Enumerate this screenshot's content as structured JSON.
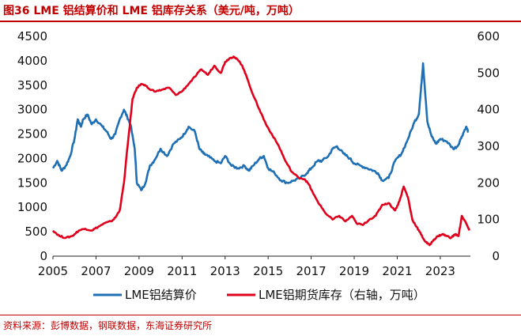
{
  "title": "图36  LME 铝结算价和 LME 铝库存关系（美元/吨，万吨）",
  "source": "资料来源：彭博数据，钢联数据，东海证券研究所",
  "colors": {
    "accent": "#c00000",
    "price": "#1f6fb5",
    "inventory": "#e0001b"
  },
  "chart_data": {
    "type": "line",
    "x_ticks": [
      "2005",
      "2007",
      "2009",
      "2011",
      "2013",
      "2015",
      "2017",
      "2019",
      "2021",
      "2023"
    ],
    "xlim": [
      2005,
      2024.4
    ],
    "ylim_left": [
      0,
      4500
    ],
    "ylim_right": [
      0,
      600
    ],
    "y_ticks_left": [
      "0",
      "500",
      "1000",
      "1500",
      "2000",
      "2500",
      "3000",
      "3500",
      "4000",
      "4500"
    ],
    "y_ticks_right": [
      "0",
      "100",
      "200",
      "300",
      "400",
      "500",
      "600"
    ],
    "legend_position": "bottom",
    "series": [
      {
        "name": "LME铝结算价",
        "axis": "left",
        "color": "#1f6fb5",
        "x": [
          2005.0,
          2005.2,
          2005.4,
          2005.6,
          2005.8,
          2006.0,
          2006.15,
          2006.3,
          2006.4,
          2006.6,
          2006.8,
          2007.0,
          2007.3,
          2007.5,
          2007.7,
          2007.9,
          2008.1,
          2008.3,
          2008.45,
          2008.6,
          2008.8,
          2008.9,
          2009.1,
          2009.3,
          2009.5,
          2009.7,
          2010.0,
          2010.3,
          2010.6,
          2010.9,
          2011.1,
          2011.3,
          2011.6,
          2011.8,
          2012.0,
          2012.2,
          2012.5,
          2012.8,
          2013.0,
          2013.3,
          2013.6,
          2013.9,
          2014.1,
          2014.3,
          2014.6,
          2014.8,
          2015.0,
          2015.3,
          2015.6,
          2015.9,
          2016.2,
          2016.5,
          2016.8,
          2017.0,
          2017.3,
          2017.5,
          2017.8,
          2018.0,
          2018.2,
          2018.5,
          2018.8,
          2019.0,
          2019.3,
          2019.6,
          2019.9,
          2020.1,
          2020.3,
          2020.6,
          2020.9,
          2021.2,
          2021.5,
          2021.8,
          2022.0,
          2022.1,
          2022.2,
          2022.4,
          2022.6,
          2022.8,
          2023.0,
          2023.3,
          2023.6,
          2023.8,
          2024.0,
          2024.2,
          2024.3
        ],
        "values": [
          1800,
          1950,
          1750,
          1850,
          2050,
          2400,
          2800,
          2650,
          2800,
          2900,
          2700,
          2800,
          2650,
          2550,
          2400,
          2500,
          2800,
          3000,
          2850,
          2700,
          2200,
          1500,
          1350,
          1500,
          1850,
          1950,
          2200,
          2050,
          2300,
          2400,
          2500,
          2650,
          2550,
          2200,
          2100,
          2050,
          1950,
          1900,
          2050,
          1850,
          1800,
          1850,
          1750,
          1850,
          2000,
          2050,
          1800,
          1700,
          1550,
          1500,
          1550,
          1600,
          1700,
          1800,
          1950,
          1950,
          2050,
          2200,
          2250,
          2100,
          2000,
          1900,
          1850,
          1800,
          1750,
          1700,
          1550,
          1600,
          1950,
          2100,
          2400,
          2750,
          2900,
          3400,
          3950,
          2750,
          2450,
          2300,
          2400,
          2350,
          2200,
          2250,
          2450,
          2650,
          2550
        ]
      },
      {
        "name": "LME铝期货库存（右轴，万吨）",
        "axis": "right",
        "color": "#e0001b",
        "x": [
          2005.0,
          2005.3,
          2005.6,
          2005.9,
          2006.2,
          2006.5,
          2006.8,
          2007.1,
          2007.4,
          2007.7,
          2007.9,
          2008.1,
          2008.3,
          2008.5,
          2008.7,
          2008.9,
          2009.1,
          2009.3,
          2009.5,
          2009.8,
          2010.1,
          2010.4,
          2010.7,
          2011.0,
          2011.3,
          2011.6,
          2011.9,
          2012.2,
          2012.5,
          2012.8,
          2013.0,
          2013.2,
          2013.4,
          2013.6,
          2013.8,
          2014.0,
          2014.3,
          2014.6,
          2014.9,
          2015.2,
          2015.5,
          2015.8,
          2016.1,
          2016.4,
          2016.7,
          2016.9,
          2017.1,
          2017.4,
          2017.7,
          2018.0,
          2018.3,
          2018.6,
          2018.9,
          2019.1,
          2019.4,
          2019.7,
          2020.0,
          2020.3,
          2020.6,
          2020.9,
          2021.1,
          2021.3,
          2021.5,
          2021.7,
          2021.9,
          2022.1,
          2022.3,
          2022.5,
          2022.7,
          2022.9,
          2023.1,
          2023.3,
          2023.5,
          2023.7,
          2023.85,
          2024.0,
          2024.2,
          2024.35
        ],
        "values": [
          70,
          55,
          50,
          55,
          70,
          75,
          70,
          80,
          90,
          95,
          105,
          125,
          200,
          320,
          430,
          460,
          470,
          465,
          455,
          450,
          455,
          460,
          440,
          450,
          470,
          490,
          510,
          495,
          520,
          500,
          530,
          540,
          545,
          535,
          520,
          490,
          440,
          400,
          360,
          330,
          300,
          260,
          230,
          215,
          210,
          195,
          170,
          140,
          115,
          100,
          110,
          95,
          110,
          90,
          85,
          100,
          110,
          140,
          145,
          125,
          150,
          190,
          160,
          100,
          80,
          60,
          40,
          30,
          45,
          55,
          60,
          55,
          50,
          60,
          55,
          110,
          90,
          70
        ]
      }
    ]
  }
}
